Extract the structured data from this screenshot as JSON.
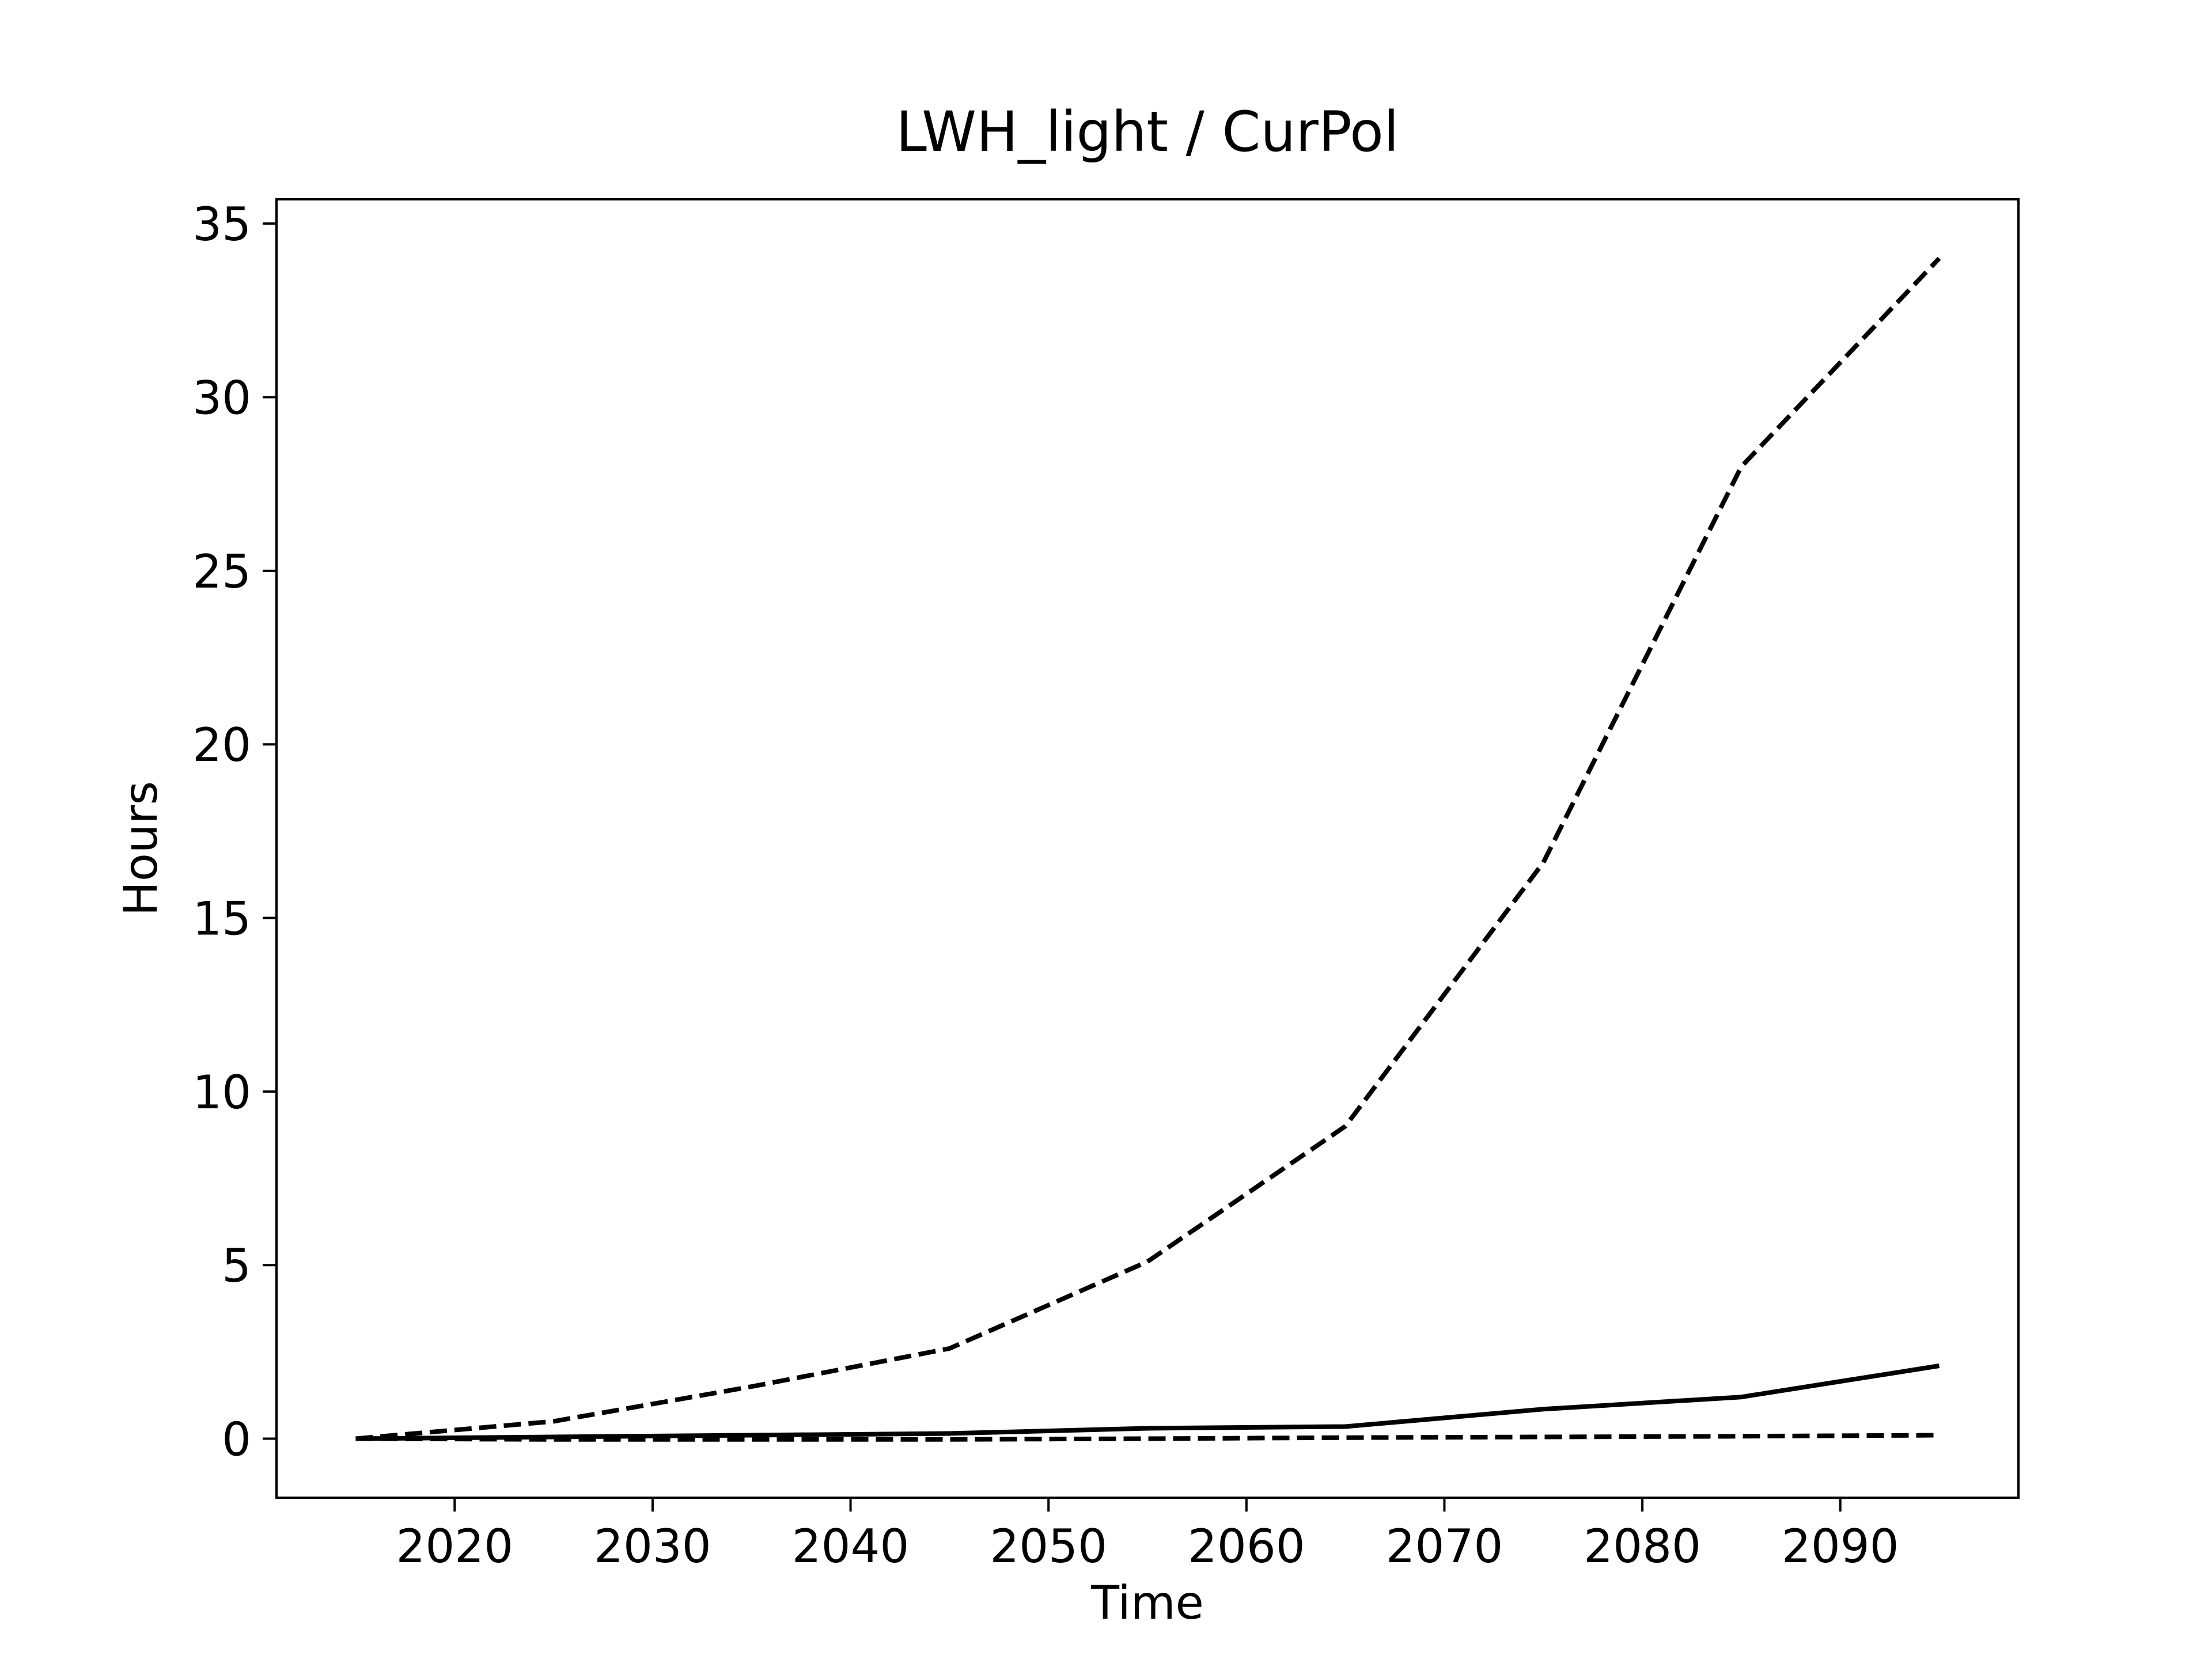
{
  "chart_data": {
    "type": "line",
    "title": "LWH_light / CurPol",
    "xlabel": "Time",
    "ylabel": "Hours",
    "xlim": [
      2011,
      2099
    ],
    "ylim": [
      -1.7,
      35.7
    ],
    "xticks": [
      2020,
      2030,
      2040,
      2050,
      2060,
      2070,
      2080,
      2090
    ],
    "yticks": [
      0,
      5,
      10,
      15,
      20,
      25,
      30,
      35
    ],
    "grid": false,
    "x": [
      2015,
      2025,
      2035,
      2045,
      2055,
      2065,
      2075,
      2085,
      2095
    ],
    "series": [
      {
        "style": "dashed",
        "color": "#000000",
        "values": [
          0.0,
          0.5,
          1.5,
          2.6,
          5.1,
          9.0,
          16.6,
          28.0,
          34.0
        ]
      },
      {
        "style": "solid",
        "color": "#000000",
        "values": [
          0.0,
          0.05,
          0.1,
          0.15,
          0.3,
          0.35,
          0.85,
          1.2,
          2.1
        ]
      },
      {
        "style": "dashed",
        "color": "#000000",
        "values": [
          0.0,
          -0.02,
          -0.02,
          -0.02,
          0.0,
          0.03,
          0.05,
          0.07,
          0.1
        ]
      }
    ]
  }
}
